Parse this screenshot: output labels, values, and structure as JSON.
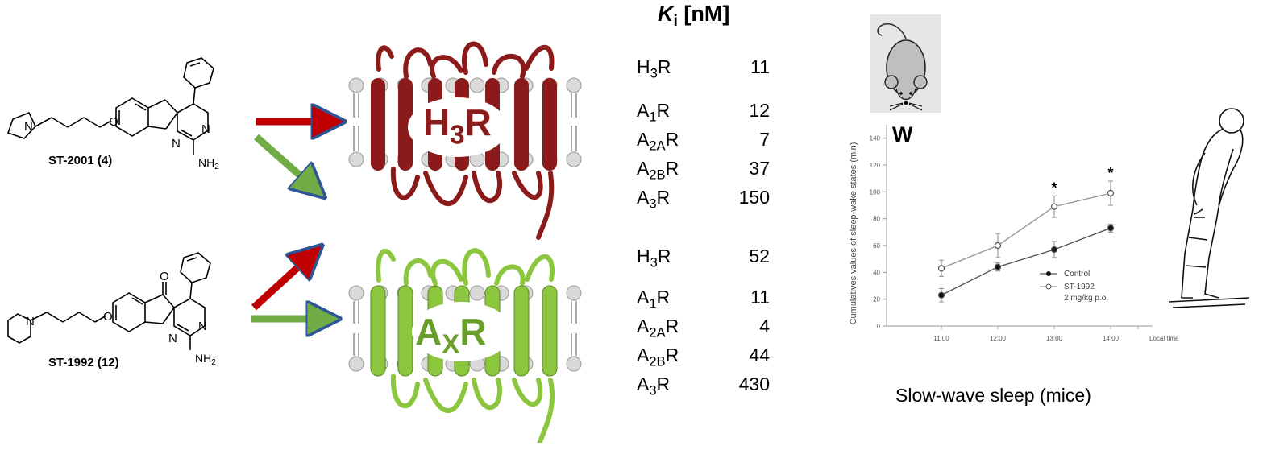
{
  "compounds": [
    {
      "label": "ST-2001",
      "number": "(4)",
      "substituent": "NH2"
    },
    {
      "label": "ST-1992",
      "number": "(12)",
      "substituent": "NH2"
    }
  ],
  "receptors": {
    "h3": {
      "base": "H",
      "sub": "3",
      "suffix": "R",
      "color": "#8b1a1a"
    },
    "ax": {
      "base": "A",
      "sub": "X",
      "suffix": "R",
      "color": "#8cc63f"
    }
  },
  "ki_header": {
    "symbol": "K",
    "sub": "i",
    "unit": "[nM]"
  },
  "ki_tables": [
    {
      "rows": [
        {
          "base": "H",
          "sub": "3",
          "suffix": "R",
          "value": "11"
        },
        {
          "base": "A",
          "sub": "1",
          "suffix": "R",
          "value": "12"
        },
        {
          "base": "A",
          "sub": "2A",
          "suffix": "R",
          "value": "7"
        },
        {
          "base": "A",
          "sub": "2B",
          "suffix": "R",
          "value": "37"
        },
        {
          "base": "A",
          "sub": "3",
          "suffix": "R",
          "value": "150"
        }
      ]
    },
    {
      "rows": [
        {
          "base": "H",
          "sub": "3",
          "suffix": "R",
          "value": "52"
        },
        {
          "base": "A",
          "sub": "1",
          "suffix": "R",
          "value": "11"
        },
        {
          "base": "A",
          "sub": "2A",
          "suffix": "R",
          "value": "4"
        },
        {
          "base": "A",
          "sub": "2B",
          "suffix": "R",
          "value": "44"
        },
        {
          "base": "A",
          "sub": "3",
          "suffix": "R",
          "value": "430"
        }
      ]
    }
  ],
  "panel_letter": "W",
  "caption": "Slow-wave sleep (mice)",
  "chart_data": {
    "type": "line",
    "title": "",
    "xlabel": "Local time",
    "ylabel": "Cumulatives values of sleep-wake states (min)",
    "categories": [
      "11:00",
      "12:00",
      "13:00",
      "14:00"
    ],
    "ylim": [
      0,
      150
    ],
    "yticks": [
      "0",
      "20",
      "40",
      "60",
      "80",
      "100",
      "120",
      "140"
    ],
    "series": [
      {
        "name": "Control",
        "values": [
          23,
          44,
          57,
          73
        ],
        "errors": [
          5,
          3,
          6,
          3
        ],
        "marker": "filled"
      },
      {
        "name": "ST-1992",
        "values": [
          43,
          60,
          89,
          99
        ],
        "errors": [
          6,
          9,
          8,
          9
        ],
        "marker": "open"
      }
    ],
    "legend": [
      "Control",
      "ST-1992",
      "2 mg/kg p.o."
    ],
    "annotations": [
      "*",
      "*"
    ]
  }
}
